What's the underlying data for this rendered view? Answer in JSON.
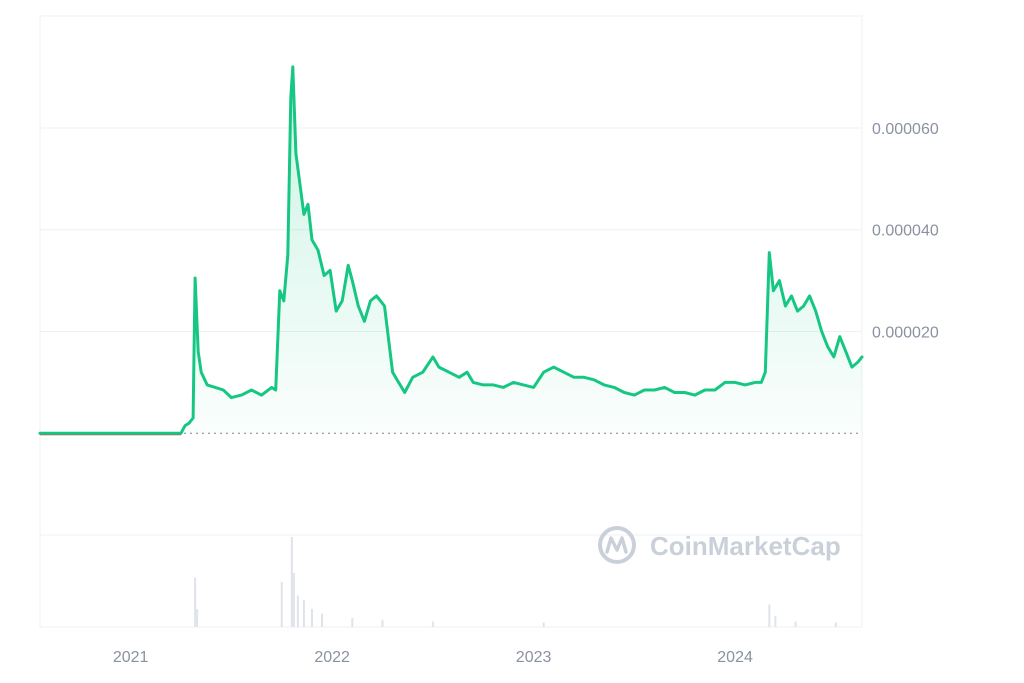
{
  "chart_data": {
    "type": "area",
    "x_ticks": [
      "2021",
      "2022",
      "2023",
      "2024"
    ],
    "y_ticks": [
      "0.000020",
      "0.000040",
      "0.000060"
    ],
    "y_tick_values": [
      2e-05,
      4e-05,
      6e-05
    ],
    "ylim": [
      -2e-05,
      8.2e-05
    ],
    "xlim": [
      2020.55,
      2024.63
    ],
    "grid": true,
    "baseline_value": 0,
    "series": [
      {
        "color": "#16c784",
        "points": [
          [
            2020.55,
            0
          ],
          [
            2021.0,
            0
          ],
          [
            2021.25,
            0
          ],
          [
            2021.27,
            1.5e-06
          ],
          [
            2021.29,
            2e-06
          ],
          [
            2021.31,
            3e-06
          ],
          [
            2021.32,
            3.05e-05
          ],
          [
            2021.335,
            1.6e-05
          ],
          [
            2021.35,
            1.2e-05
          ],
          [
            2021.38,
            9.5e-06
          ],
          [
            2021.42,
            9e-06
          ],
          [
            2021.46,
            8.5e-06
          ],
          [
            2021.5,
            7e-06
          ],
          [
            2021.55,
            7.5e-06
          ],
          [
            2021.6,
            8.5e-06
          ],
          [
            2021.65,
            7.5e-06
          ],
          [
            2021.7,
            9e-06
          ],
          [
            2021.72,
            8.5e-06
          ],
          [
            2021.74,
            2.8e-05
          ],
          [
            2021.76,
            2.6e-05
          ],
          [
            2021.78,
            3.5e-05
          ],
          [
            2021.795,
            6.6e-05
          ],
          [
            2021.805,
            7.2e-05
          ],
          [
            2021.82,
            5.5e-05
          ],
          [
            2021.84,
            4.9e-05
          ],
          [
            2021.86,
            4.3e-05
          ],
          [
            2021.88,
            4.5e-05
          ],
          [
            2021.9,
            3.8e-05
          ],
          [
            2021.93,
            3.6e-05
          ],
          [
            2021.96,
            3.1e-05
          ],
          [
            2021.99,
            3.2e-05
          ],
          [
            2022.02,
            2.4e-05
          ],
          [
            2022.05,
            2.6e-05
          ],
          [
            2022.08,
            3.3e-05
          ],
          [
            2022.1,
            3e-05
          ],
          [
            2022.13,
            2.5e-05
          ],
          [
            2022.16,
            2.2e-05
          ],
          [
            2022.19,
            2.6e-05
          ],
          [
            2022.22,
            2.7e-05
          ],
          [
            2022.26,
            2.5e-05
          ],
          [
            2022.3,
            1.2e-05
          ],
          [
            2022.33,
            1e-05
          ],
          [
            2022.36,
            8e-06
          ],
          [
            2022.4,
            1.1e-05
          ],
          [
            2022.45,
            1.2e-05
          ],
          [
            2022.5,
            1.5e-05
          ],
          [
            2022.53,
            1.3e-05
          ],
          [
            2022.58,
            1.2e-05
          ],
          [
            2022.63,
            1.1e-05
          ],
          [
            2022.67,
            1.2e-05
          ],
          [
            2022.7,
            1e-05
          ],
          [
            2022.75,
            9.5e-06
          ],
          [
            2022.8,
            9.5e-06
          ],
          [
            2022.85,
            9e-06
          ],
          [
            2022.9,
            1e-05
          ],
          [
            2022.95,
            9.5e-06
          ],
          [
            2023.0,
            9e-06
          ],
          [
            2023.05,
            1.2e-05
          ],
          [
            2023.1,
            1.3e-05
          ],
          [
            2023.15,
            1.2e-05
          ],
          [
            2023.2,
            1.1e-05
          ],
          [
            2023.25,
            1.1e-05
          ],
          [
            2023.3,
            1.05e-05
          ],
          [
            2023.35,
            9.5e-06
          ],
          [
            2023.4,
            9e-06
          ],
          [
            2023.45,
            8e-06
          ],
          [
            2023.5,
            7.5e-06
          ],
          [
            2023.55,
            8.5e-06
          ],
          [
            2023.6,
            8.5e-06
          ],
          [
            2023.65,
            9e-06
          ],
          [
            2023.7,
            8e-06
          ],
          [
            2023.75,
            8e-06
          ],
          [
            2023.8,
            7.5e-06
          ],
          [
            2023.85,
            8.5e-06
          ],
          [
            2023.9,
            8.5e-06
          ],
          [
            2023.95,
            1e-05
          ],
          [
            2024.0,
            1e-05
          ],
          [
            2024.05,
            9.5e-06
          ],
          [
            2024.1,
            1e-05
          ],
          [
            2024.13,
            1e-05
          ],
          [
            2024.15,
            1.2e-05
          ],
          [
            2024.17,
            3.55e-05
          ],
          [
            2024.19,
            2.8e-05
          ],
          [
            2024.22,
            3e-05
          ],
          [
            2024.25,
            2.5e-05
          ],
          [
            2024.28,
            2.7e-05
          ],
          [
            2024.31,
            2.4e-05
          ],
          [
            2024.34,
            2.5e-05
          ],
          [
            2024.37,
            2.7e-05
          ],
          [
            2024.4,
            2.4e-05
          ],
          [
            2024.43,
            2e-05
          ],
          [
            2024.46,
            1.7e-05
          ],
          [
            2024.49,
            1.5e-05
          ],
          [
            2024.52,
            1.9e-05
          ],
          [
            2024.55,
            1.6e-05
          ],
          [
            2024.58,
            1.3e-05
          ],
          [
            2024.61,
            1.4e-05
          ],
          [
            2024.63,
            1.5e-05
          ]
        ]
      }
    ],
    "volume": [
      [
        2021.32,
        0.55
      ],
      [
        2021.33,
        0.2
      ],
      [
        2021.75,
        0.5
      ],
      [
        2021.8,
        1.0
      ],
      [
        2021.81,
        0.6
      ],
      [
        2021.83,
        0.35
      ],
      [
        2021.86,
        0.3
      ],
      [
        2021.9,
        0.2
      ],
      [
        2021.95,
        0.15
      ],
      [
        2022.1,
        0.1
      ],
      [
        2022.25,
        0.08
      ],
      [
        2022.5,
        0.06
      ],
      [
        2023.05,
        0.05
      ],
      [
        2024.17,
        0.25
      ],
      [
        2024.2,
        0.12
      ],
      [
        2024.3,
        0.06
      ],
      [
        2024.5,
        0.05
      ]
    ]
  },
  "watermark": {
    "text": "CoinMarketCap",
    "icon": "coinmarketcap-logo-icon"
  }
}
